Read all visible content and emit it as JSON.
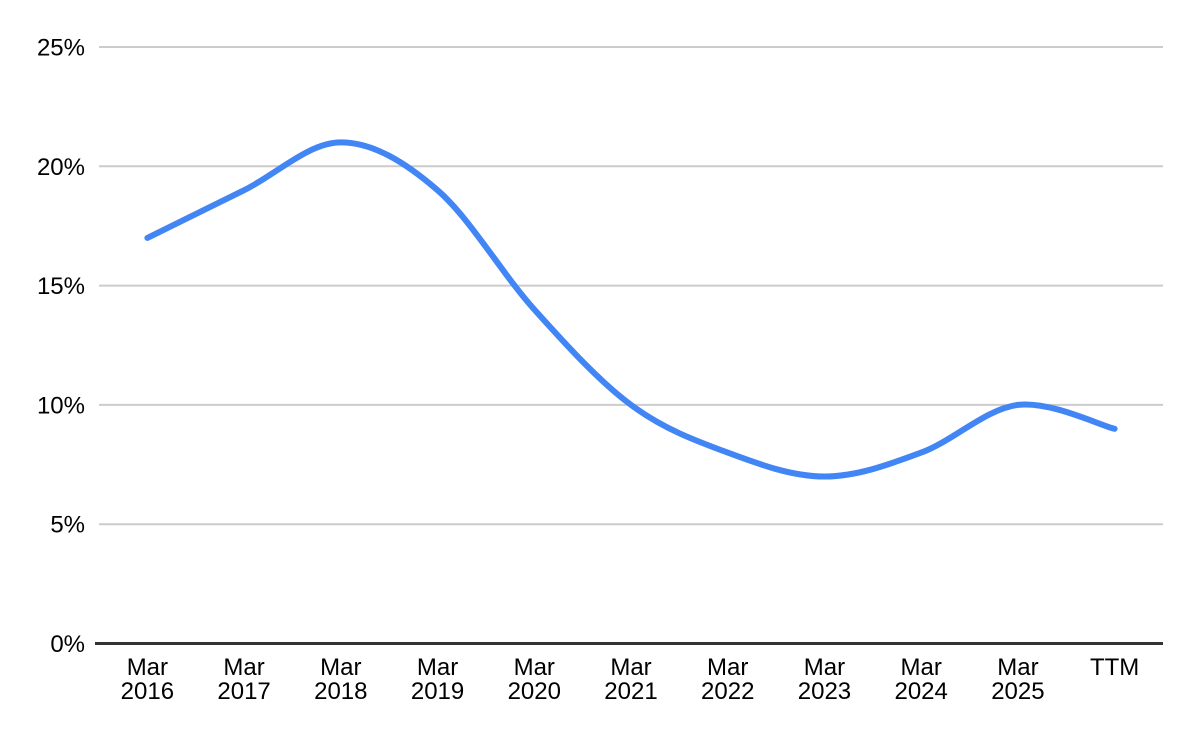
{
  "chart_data": {
    "type": "line",
    "categories": [
      "Mar 2016",
      "Mar 2017",
      "Mar 2018",
      "Mar 2019",
      "Mar 2020",
      "Mar 2021",
      "Mar 2022",
      "Mar 2023",
      "Mar 2024",
      "Mar 2025",
      "TTM"
    ],
    "values": [
      17,
      19,
      21,
      19,
      14,
      10,
      8,
      7,
      8,
      10,
      9
    ],
    "unit": "%",
    "title": "",
    "xlabel": "",
    "ylabel": "",
    "ylim": [
      0,
      25
    ],
    "y_tick_step": 5,
    "y_tick_labels": [
      "0%",
      "5%",
      "10%",
      "15%",
      "20%",
      "25%"
    ],
    "grid": "horizontal",
    "legend": "none",
    "smooth": true,
    "colors": {
      "line": "#4285f4",
      "gridline": "#cccccc",
      "axis": "#333333",
      "label": "#000000",
      "background": "#ffffff"
    }
  }
}
